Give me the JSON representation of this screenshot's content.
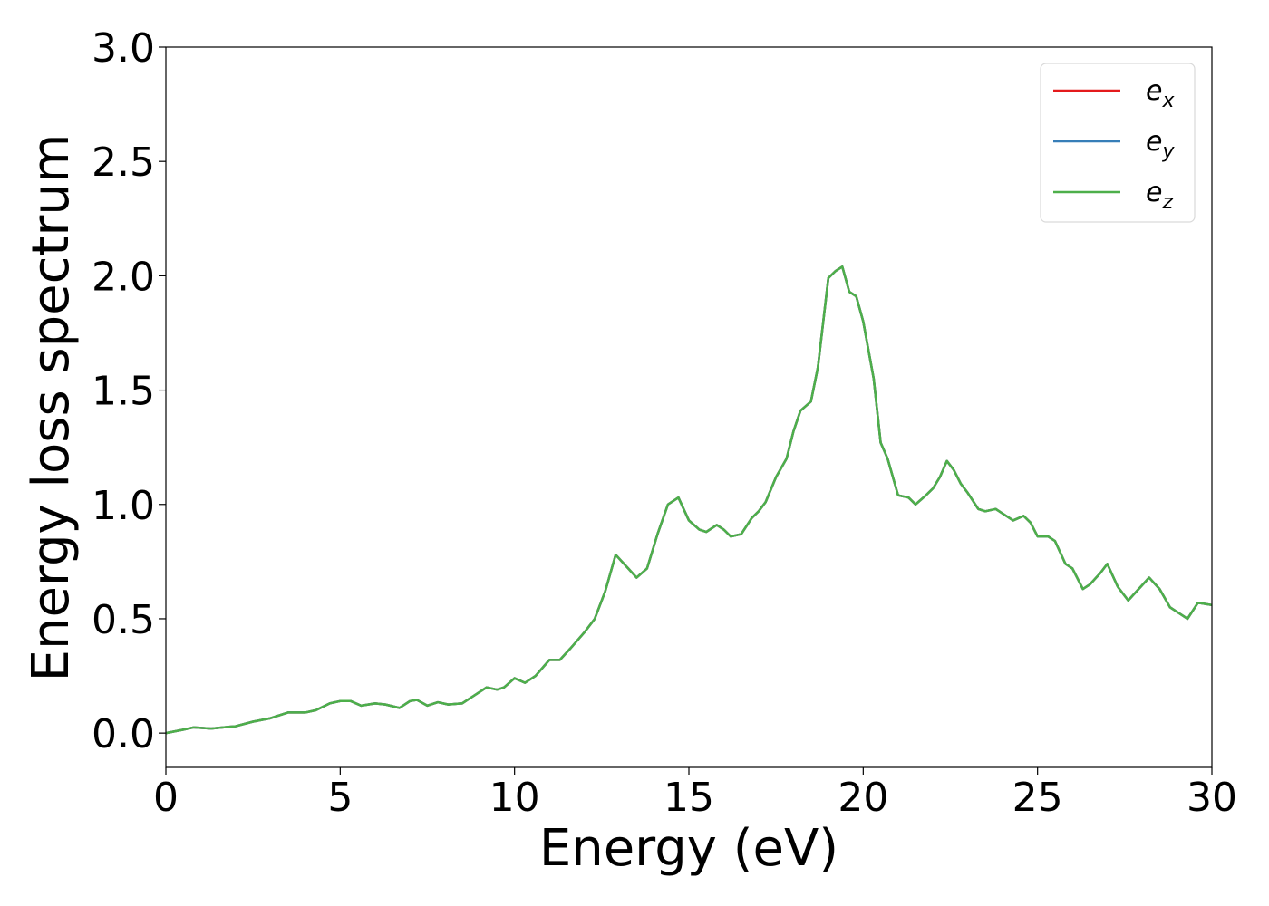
{
  "chart_data": {
    "type": "line",
    "xlabel": "Energy (eV)",
    "ylabel": "Energy loss spectrum",
    "xlim": [
      0,
      30
    ],
    "ylim": [
      -0.15,
      3.0
    ],
    "xticks": [
      "0",
      "5",
      "10",
      "15",
      "20",
      "25",
      "30"
    ],
    "yticks": [
      "0.0",
      "0.5",
      "1.0",
      "1.5",
      "2.0",
      "2.5",
      "3.0"
    ],
    "grid": false,
    "legend_position": "top-right",
    "series": [
      {
        "name": "e",
        "subscript": "x",
        "color": "#e41a1c",
        "x": [
          0,
          0.5,
          0.8,
          1.3,
          2.0,
          2.5,
          3.0,
          3.5,
          4.0,
          4.3,
          4.7,
          5.0,
          5.3,
          5.6,
          6.0,
          6.3,
          6.7,
          7.0,
          7.2,
          7.5,
          7.8,
          8.1,
          8.5,
          8.8,
          9.2,
          9.5,
          9.7,
          10.0,
          10.3,
          10.6,
          11.0,
          11.3,
          11.6,
          12.0,
          12.3,
          12.6,
          12.9,
          13.2,
          13.5,
          13.8,
          14.1,
          14.4,
          14.7,
          15.0,
          15.3,
          15.5,
          15.8,
          16.0,
          16.2,
          16.5,
          16.8,
          17.0,
          17.2,
          17.5,
          17.8,
          18.0,
          18.2,
          18.5,
          18.7,
          19.0,
          19.2,
          19.4,
          19.6,
          19.8,
          20.0,
          20.3,
          20.5,
          20.7,
          21.0,
          21.3,
          21.5,
          21.8,
          22.0,
          22.2,
          22.4,
          22.6,
          22.8,
          23.0,
          23.3,
          23.5,
          23.8,
          24.0,
          24.3,
          24.6,
          24.8,
          25.0,
          25.3,
          25.5,
          25.8,
          26.0,
          26.3,
          26.5,
          26.8,
          27.0,
          27.3,
          27.6,
          27.9,
          28.2,
          28.5,
          28.8,
          29.0,
          29.3,
          29.6,
          30.0
        ],
        "y": [
          0.0,
          0.015,
          0.025,
          0.02,
          0.03,
          0.05,
          0.065,
          0.09,
          0.09,
          0.1,
          0.13,
          0.14,
          0.14,
          0.12,
          0.13,
          0.125,
          0.11,
          0.14,
          0.145,
          0.12,
          0.135,
          0.125,
          0.13,
          0.16,
          0.2,
          0.19,
          0.2,
          0.24,
          0.22,
          0.25,
          0.32,
          0.32,
          0.37,
          0.44,
          0.5,
          0.62,
          0.78,
          0.73,
          0.68,
          0.72,
          0.87,
          1.0,
          1.03,
          0.93,
          0.89,
          0.88,
          0.91,
          0.89,
          0.86,
          0.87,
          0.94,
          0.97,
          1.01,
          1.12,
          1.2,
          1.32,
          1.41,
          1.45,
          1.6,
          1.99,
          2.02,
          2.04,
          1.93,
          1.91,
          1.8,
          1.55,
          1.27,
          1.2,
          1.04,
          1.03,
          1.0,
          1.04,
          1.07,
          1.12,
          1.19,
          1.15,
          1.09,
          1.05,
          0.98,
          0.97,
          0.98,
          0.96,
          0.93,
          0.95,
          0.92,
          0.86,
          0.86,
          0.84,
          0.74,
          0.72,
          0.63,
          0.65,
          0.7,
          0.74,
          0.64,
          0.58,
          0.63,
          0.68,
          0.63,
          0.55,
          0.53,
          0.5,
          0.57,
          0.56
        ]
      },
      {
        "name": "e",
        "subscript": "y",
        "color": "#377eb8",
        "x": [
          0,
          0.5,
          0.8,
          1.3,
          2.0,
          2.5,
          3.0,
          3.5,
          4.0,
          4.3,
          4.7,
          5.0,
          5.3,
          5.6,
          6.0,
          6.3,
          6.7,
          7.0,
          7.2,
          7.5,
          7.8,
          8.1,
          8.5,
          8.8,
          9.2,
          9.5,
          9.7,
          10.0,
          10.3,
          10.6,
          11.0,
          11.3,
          11.6,
          12.0,
          12.3,
          12.6,
          12.9,
          13.2,
          13.5,
          13.8,
          14.1,
          14.4,
          14.7,
          15.0,
          15.3,
          15.5,
          15.8,
          16.0,
          16.2,
          16.5,
          16.8,
          17.0,
          17.2,
          17.5,
          17.8,
          18.0,
          18.2,
          18.5,
          18.7,
          19.0,
          19.2,
          19.4,
          19.6,
          19.8,
          20.0,
          20.3,
          20.5,
          20.7,
          21.0,
          21.3,
          21.5,
          21.8,
          22.0,
          22.2,
          22.4,
          22.6,
          22.8,
          23.0,
          23.3,
          23.5,
          23.8,
          24.0,
          24.3,
          24.6,
          24.8,
          25.0,
          25.3,
          25.5,
          25.8,
          26.0,
          26.3,
          26.5,
          26.8,
          27.0,
          27.3,
          27.6,
          27.9,
          28.2,
          28.5,
          28.8,
          29.0,
          29.3,
          29.6,
          30.0
        ],
        "y": [
          0.0,
          0.015,
          0.025,
          0.02,
          0.03,
          0.05,
          0.065,
          0.09,
          0.09,
          0.1,
          0.13,
          0.14,
          0.14,
          0.12,
          0.13,
          0.125,
          0.11,
          0.14,
          0.145,
          0.12,
          0.135,
          0.125,
          0.13,
          0.16,
          0.2,
          0.19,
          0.2,
          0.24,
          0.22,
          0.25,
          0.32,
          0.32,
          0.37,
          0.44,
          0.5,
          0.62,
          0.78,
          0.73,
          0.68,
          0.72,
          0.87,
          1.0,
          1.03,
          0.93,
          0.89,
          0.88,
          0.91,
          0.89,
          0.86,
          0.87,
          0.94,
          0.97,
          1.01,
          1.12,
          1.2,
          1.32,
          1.41,
          1.45,
          1.6,
          1.99,
          2.02,
          2.04,
          1.93,
          1.91,
          1.8,
          1.55,
          1.27,
          1.2,
          1.04,
          1.03,
          1.0,
          1.04,
          1.07,
          1.12,
          1.19,
          1.15,
          1.09,
          1.05,
          0.98,
          0.97,
          0.98,
          0.96,
          0.93,
          0.95,
          0.92,
          0.86,
          0.86,
          0.84,
          0.74,
          0.72,
          0.63,
          0.65,
          0.7,
          0.74,
          0.64,
          0.58,
          0.63,
          0.68,
          0.63,
          0.55,
          0.53,
          0.5,
          0.57,
          0.56
        ]
      },
      {
        "name": "e",
        "subscript": "z",
        "color": "#4daf4a",
        "x": [
          0,
          0.5,
          0.8,
          1.3,
          2.0,
          2.5,
          3.0,
          3.5,
          4.0,
          4.3,
          4.7,
          5.0,
          5.3,
          5.6,
          6.0,
          6.3,
          6.7,
          7.0,
          7.2,
          7.5,
          7.8,
          8.1,
          8.5,
          8.8,
          9.2,
          9.5,
          9.7,
          10.0,
          10.3,
          10.6,
          11.0,
          11.3,
          11.6,
          12.0,
          12.3,
          12.6,
          12.9,
          13.2,
          13.5,
          13.8,
          14.1,
          14.4,
          14.7,
          15.0,
          15.3,
          15.5,
          15.8,
          16.0,
          16.2,
          16.5,
          16.8,
          17.0,
          17.2,
          17.5,
          17.8,
          18.0,
          18.2,
          18.5,
          18.7,
          19.0,
          19.2,
          19.4,
          19.6,
          19.8,
          20.0,
          20.3,
          20.5,
          20.7,
          21.0,
          21.3,
          21.5,
          21.8,
          22.0,
          22.2,
          22.4,
          22.6,
          22.8,
          23.0,
          23.3,
          23.5,
          23.8,
          24.0,
          24.3,
          24.6,
          24.8,
          25.0,
          25.3,
          25.5,
          25.8,
          26.0,
          26.3,
          26.5,
          26.8,
          27.0,
          27.3,
          27.6,
          27.9,
          28.2,
          28.5,
          28.8,
          29.0,
          29.3,
          29.6,
          30.0
        ],
        "y": [
          0.0,
          0.015,
          0.025,
          0.02,
          0.03,
          0.05,
          0.065,
          0.09,
          0.09,
          0.1,
          0.13,
          0.14,
          0.14,
          0.12,
          0.13,
          0.125,
          0.11,
          0.14,
          0.145,
          0.12,
          0.135,
          0.125,
          0.13,
          0.16,
          0.2,
          0.19,
          0.2,
          0.24,
          0.22,
          0.25,
          0.32,
          0.32,
          0.37,
          0.44,
          0.5,
          0.62,
          0.78,
          0.73,
          0.68,
          0.72,
          0.87,
          1.0,
          1.03,
          0.93,
          0.89,
          0.88,
          0.91,
          0.89,
          0.86,
          0.87,
          0.94,
          0.97,
          1.01,
          1.12,
          1.2,
          1.32,
          1.41,
          1.45,
          1.6,
          1.99,
          2.02,
          2.04,
          1.93,
          1.91,
          1.8,
          1.55,
          1.27,
          1.2,
          1.04,
          1.03,
          1.0,
          1.04,
          1.07,
          1.12,
          1.19,
          1.15,
          1.09,
          1.05,
          0.98,
          0.97,
          0.98,
          0.96,
          0.93,
          0.95,
          0.92,
          0.86,
          0.86,
          0.84,
          0.74,
          0.72,
          0.63,
          0.65,
          0.7,
          0.74,
          0.64,
          0.58,
          0.63,
          0.68,
          0.63,
          0.55,
          0.53,
          0.5,
          0.57,
          0.56
        ]
      }
    ]
  }
}
